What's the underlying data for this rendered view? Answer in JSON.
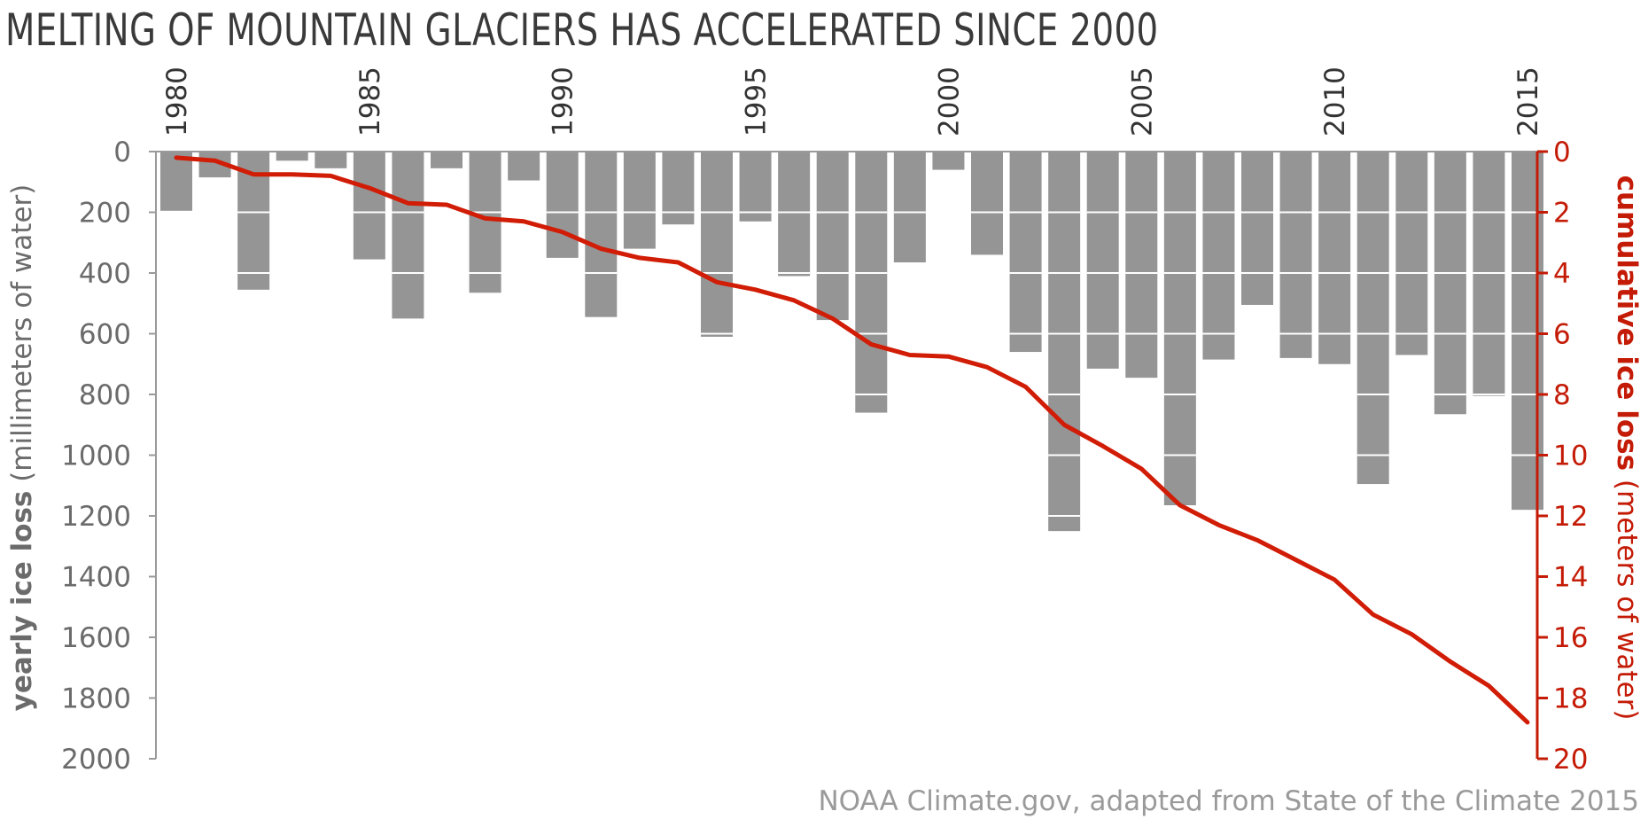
{
  "title": "MELTING OF MOUNTAIN GLACIERS HAS ACCELERATED SINCE 2000",
  "credit": "NOAA Climate.gov, adapted from State of the Climate 2015",
  "colors": {
    "bar": "#959595",
    "line": "#d11c06",
    "right_axis": "#c41b06",
    "left_axis": "#6b6b6b",
    "title": "#3a3a3a",
    "credit": "#9a9a9a"
  },
  "chart_data": {
    "type": "bar",
    "title": "MELTING OF MOUNTAIN GLACIERS HAS ACCELERATED SINCE 2000",
    "x_ticks": [
      "1980",
      "1985",
      "1990",
      "1995",
      "2000",
      "2005",
      "2010",
      "2015"
    ],
    "years": [
      1980,
      1981,
      1982,
      1983,
      1984,
      1985,
      1986,
      1987,
      1988,
      1989,
      1990,
      1991,
      1992,
      1993,
      1994,
      1995,
      1996,
      1997,
      1998,
      1999,
      2000,
      2001,
      2002,
      2003,
      2004,
      2005,
      2006,
      2007,
      2008,
      2009,
      2010,
      2011,
      2012,
      2013,
      2014,
      2015
    ],
    "ylabel_left_bold": "yearly ice loss",
    "ylabel_left_normal": " (millimeters of water)",
    "ylabel_right_bold": "cumulative ice loss",
    "ylabel_right_normal": " (meters of water)",
    "left_axis": {
      "min": 0,
      "max": 2000,
      "step": 200,
      "inverted": true,
      "ticks": [
        "0",
        "200",
        "400",
        "600",
        "800",
        "1000",
        "1200",
        "1400",
        "1600",
        "1800",
        "2000"
      ]
    },
    "right_axis": {
      "min": 0,
      "max": 20,
      "step": 2,
      "inverted": true,
      "ticks": [
        "0",
        "2",
        "4",
        "6",
        "8",
        "10",
        "12",
        "14",
        "16",
        "18",
        "20"
      ]
    },
    "series": [
      {
        "name": "yearly ice loss",
        "kind": "bar",
        "unit": "millimeters of water",
        "values": [
          195,
          85,
          455,
          30,
          55,
          355,
          550,
          55,
          465,
          95,
          350,
          545,
          320,
          240,
          610,
          230,
          410,
          555,
          860,
          365,
          60,
          340,
          660,
          1250,
          715,
          745,
          1165,
          685,
          505,
          680,
          700,
          1095,
          670,
          865,
          805,
          1180
        ]
      },
      {
        "name": "cumulative ice loss",
        "kind": "line",
        "unit": "meters of water",
        "values": [
          0.2,
          0.3,
          0.75,
          0.75,
          0.8,
          1.2,
          1.7,
          1.75,
          2.2,
          2.3,
          2.65,
          3.2,
          3.5,
          3.65,
          4.3,
          4.55,
          4.9,
          5.5,
          6.35,
          6.7,
          6.75,
          7.1,
          7.75,
          9.0,
          9.7,
          10.45,
          11.65,
          12.3,
          12.8,
          13.45,
          14.1,
          15.25,
          15.9,
          16.8,
          17.6,
          18.8
        ]
      }
    ]
  }
}
